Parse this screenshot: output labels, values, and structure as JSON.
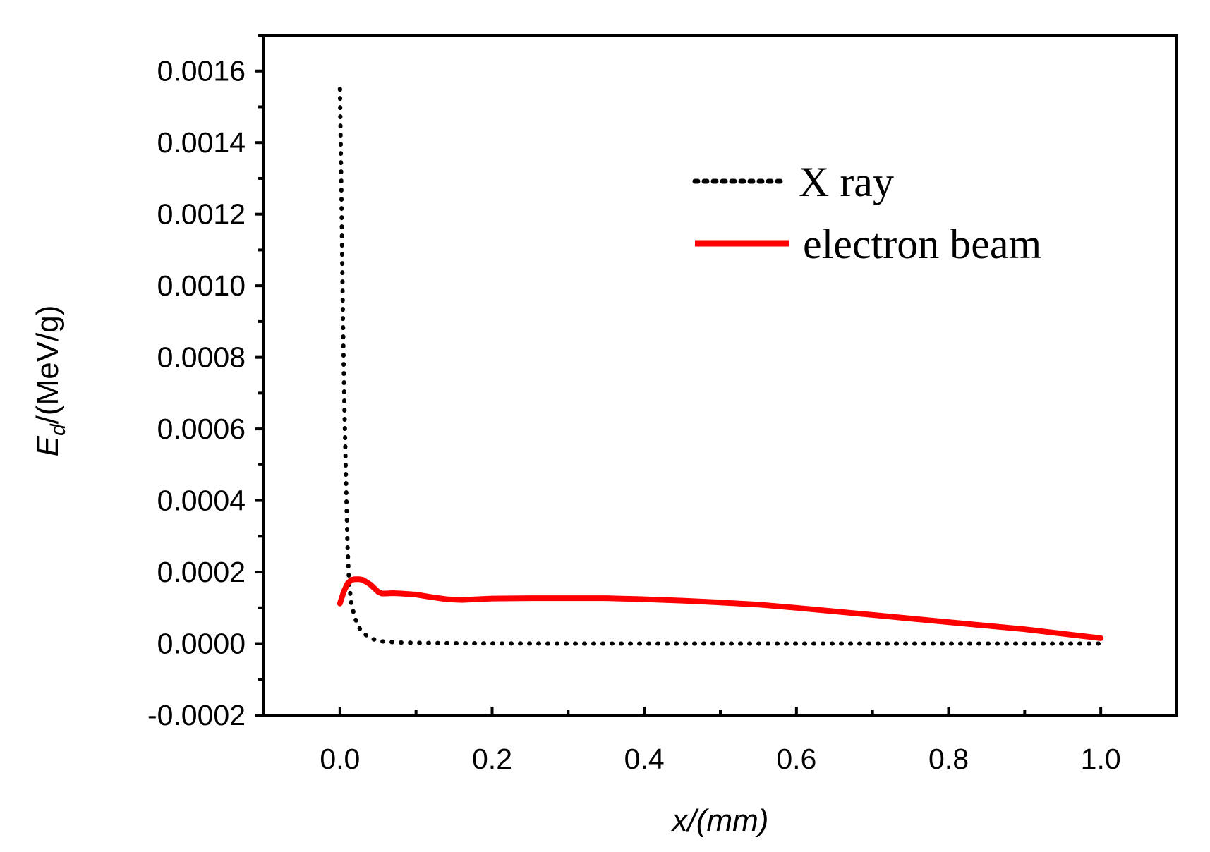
{
  "chart_data": {
    "type": "line",
    "title": "",
    "xlabel": "x/(mm)",
    "ylabel": {
      "main": "E",
      "subscript": "d",
      "unit": "/(MeV/g)"
    },
    "xlim": [
      -0.1,
      1.1
    ],
    "ylim": [
      -0.0002,
      0.0017
    ],
    "xticks": [
      0.0,
      0.2,
      0.4,
      0.6,
      0.8,
      1.0
    ],
    "xtick_labels": [
      "0.0",
      "0.2",
      "0.4",
      "0.6",
      "0.8",
      "1.0"
    ],
    "yticks": [
      -0.0002,
      0.0,
      0.0002,
      0.0004,
      0.0006,
      0.0008,
      0.001,
      0.0012,
      0.0014,
      0.0016
    ],
    "ytick_labels": [
      "-0.0002",
      "0.0000",
      "0.0002",
      "0.0004",
      "0.0006",
      "0.0008",
      "0.0010",
      "0.0012",
      "0.0014",
      "0.0016"
    ],
    "legend_position": "top-right",
    "series": [
      {
        "name": "X ray",
        "style": "dotted",
        "color": "#000000",
        "x": [
          0.0,
          0.002,
          0.004,
          0.006,
          0.008,
          0.01,
          0.012,
          0.015,
          0.02,
          0.025,
          0.03,
          0.04,
          0.05,
          0.06,
          0.08,
          0.1,
          0.15,
          0.2,
          0.3,
          0.4,
          0.5,
          0.6,
          0.7,
          0.8,
          0.9,
          1.0
        ],
        "y": [
          0.00155,
          0.00125,
          0.0009,
          0.00065,
          0.00045,
          0.00027,
          0.00017,
          0.00011,
          7e-05,
          4.5e-05,
          3e-05,
          1.5e-05,
          8e-06,
          5e-06,
          3e-06,
          2e-06,
          1e-06,
          5e-07,
          0.0,
          0.0,
          0.0,
          0.0,
          0.0,
          0.0,
          0.0,
          0.0
        ]
      },
      {
        "name": "electron beam",
        "style": "solid",
        "color": "#ff0000",
        "x": [
          0.0,
          0.005,
          0.01,
          0.015,
          0.02,
          0.025,
          0.03,
          0.035,
          0.04,
          0.045,
          0.05,
          0.055,
          0.06,
          0.07,
          0.08,
          0.1,
          0.12,
          0.14,
          0.16,
          0.18,
          0.2,
          0.25,
          0.3,
          0.35,
          0.4,
          0.45,
          0.5,
          0.55,
          0.6,
          0.7,
          0.8,
          0.9,
          1.0
        ],
        "y": [
          0.000112,
          0.000145,
          0.000168,
          0.000178,
          0.00018,
          0.00018,
          0.000178,
          0.000172,
          0.000165,
          0.000155,
          0.000145,
          0.00014,
          0.00014,
          0.000141,
          0.00014,
          0.000137,
          0.00013,
          0.000124,
          0.000122,
          0.000124,
          0.000126,
          0.000127,
          0.000127,
          0.000127,
          0.000124,
          0.00012,
          0.000115,
          0.000109,
          0.0001,
          8e-05,
          6e-05,
          4e-05,
          1.5e-05
        ]
      }
    ]
  }
}
